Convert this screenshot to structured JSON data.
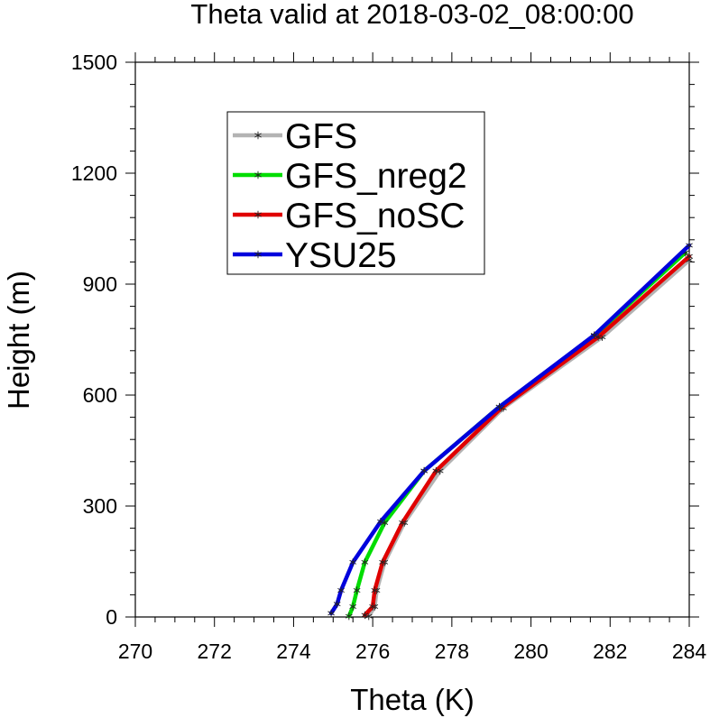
{
  "chart_data": {
    "type": "line",
    "title": "Theta valid at 2018-03-02_08:00:00",
    "xlabel": "Theta (K)",
    "ylabel": "Height (m)",
    "xlim": [
      270,
      284
    ],
    "ylim": [
      0,
      1500
    ],
    "xticks": [
      270,
      272,
      274,
      276,
      278,
      280,
      282,
      284
    ],
    "yticks": [
      0,
      300,
      600,
      900,
      1200,
      1500
    ],
    "grid": false,
    "legend_position": "top-left",
    "series": [
      {
        "name": "GFS",
        "color": "#b3b3b3",
        "marker": "asterisk",
        "points": [
          [
            275.9,
            2
          ],
          [
            276.05,
            28
          ],
          [
            276.1,
            72
          ],
          [
            276.3,
            148
          ],
          [
            276.8,
            255
          ],
          [
            277.7,
            395
          ],
          [
            279.3,
            565
          ],
          [
            281.8,
            757
          ],
          [
            284.0,
            965
          ]
        ]
      },
      {
        "name": "GFS_nreg2",
        "color": "#00dd00",
        "marker": "asterisk",
        "points": [
          [
            275.4,
            2
          ],
          [
            275.5,
            28
          ],
          [
            275.6,
            72
          ],
          [
            275.8,
            148
          ],
          [
            276.3,
            255
          ],
          [
            277.3,
            395
          ],
          [
            279.2,
            568
          ],
          [
            281.6,
            760
          ],
          [
            283.9,
            985
          ]
        ]
      },
      {
        "name": "GFS_noSC",
        "color": "#e00000",
        "marker": "asterisk",
        "points": [
          [
            275.8,
            5
          ],
          [
            276.0,
            28
          ],
          [
            276.05,
            72
          ],
          [
            276.25,
            148
          ],
          [
            276.75,
            255
          ],
          [
            277.6,
            395
          ],
          [
            279.25,
            565
          ],
          [
            281.7,
            757
          ],
          [
            284.0,
            975
          ]
        ]
      },
      {
        "name": "YSU25",
        "color": "#0000dd",
        "marker": "asterisk",
        "points": [
          [
            274.95,
            10
          ],
          [
            275.1,
            35
          ],
          [
            275.2,
            72
          ],
          [
            275.5,
            148
          ],
          [
            276.2,
            258
          ],
          [
            277.3,
            395
          ],
          [
            279.2,
            568
          ],
          [
            281.6,
            762
          ],
          [
            284.0,
            1005
          ]
        ]
      }
    ]
  }
}
